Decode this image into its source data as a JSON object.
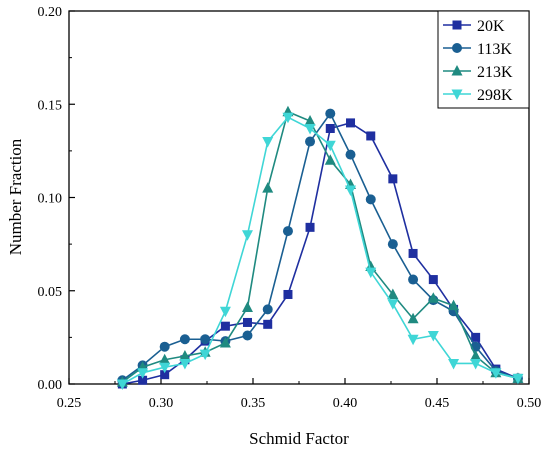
{
  "chart_data": {
    "type": "line",
    "xlabel": "Schmid Factor",
    "ylabel": "Number Fraction",
    "xlim": [
      0.25,
      0.5
    ],
    "ylim": [
      0.0,
      0.2
    ],
    "xticks": [
      "0.25",
      "0.30",
      "0.35",
      "0.40",
      "0.45",
      "0.50"
    ],
    "yticks": [
      "0.00",
      "0.05",
      "0.10",
      "0.15",
      "0.20"
    ],
    "grid": false,
    "legend_position": "top-right",
    "series": [
      {
        "name": "20K",
        "marker": "square",
        "color": "#1f2fa0",
        "x": [
          0.279,
          0.29,
          0.302,
          0.313,
          0.324,
          0.335,
          0.347,
          0.358,
          0.369,
          0.381,
          0.392,
          0.403,
          0.414,
          0.426,
          0.437,
          0.448,
          0.459,
          0.471,
          0.482,
          0.494
        ],
        "y": [
          0.0,
          0.002,
          0.005,
          0.013,
          0.023,
          0.031,
          0.033,
          0.032,
          0.048,
          0.084,
          0.137,
          0.14,
          0.133,
          0.11,
          0.07,
          0.056,
          0.04,
          0.025,
          0.008,
          0.003
        ]
      },
      {
        "name": "113K",
        "marker": "circle",
        "color": "#1a5f92",
        "x": [
          0.279,
          0.29,
          0.302,
          0.313,
          0.324,
          0.335,
          0.347,
          0.358,
          0.369,
          0.381,
          0.392,
          0.403,
          0.414,
          0.426,
          0.437,
          0.448,
          0.459,
          0.471,
          0.482,
          0.494
        ],
        "y": [
          0.002,
          0.01,
          0.02,
          0.024,
          0.024,
          0.023,
          0.026,
          0.04,
          0.082,
          0.13,
          0.145,
          0.123,
          0.099,
          0.075,
          0.056,
          0.045,
          0.039,
          0.02,
          0.007,
          0.003
        ]
      },
      {
        "name": "213K",
        "marker": "triangle-up",
        "color": "#1f8a80",
        "x": [
          0.279,
          0.29,
          0.302,
          0.313,
          0.324,
          0.335,
          0.347,
          0.358,
          0.369,
          0.381,
          0.392,
          0.403,
          0.414,
          0.426,
          0.437,
          0.448,
          0.459,
          0.471,
          0.482,
          0.494
        ],
        "y": [
          0.001,
          0.009,
          0.013,
          0.015,
          0.017,
          0.022,
          0.041,
          0.105,
          0.146,
          0.141,
          0.12,
          0.107,
          0.063,
          0.048,
          0.035,
          0.046,
          0.042,
          0.015,
          0.006,
          0.003
        ]
      },
      {
        "name": "298K",
        "marker": "triangle-down",
        "color": "#3fd6d6",
        "x": [
          0.279,
          0.29,
          0.302,
          0.313,
          0.324,
          0.335,
          0.347,
          0.358,
          0.369,
          0.381,
          0.392,
          0.403,
          0.414,
          0.426,
          0.437,
          0.448,
          0.459,
          0.471,
          0.482,
          0.494
        ],
        "y": [
          0.0,
          0.006,
          0.009,
          0.011,
          0.016,
          0.039,
          0.08,
          0.13,
          0.143,
          0.137,
          0.128,
          0.104,
          0.06,
          0.043,
          0.024,
          0.026,
          0.011,
          0.011,
          0.006,
          0.003
        ]
      }
    ]
  }
}
